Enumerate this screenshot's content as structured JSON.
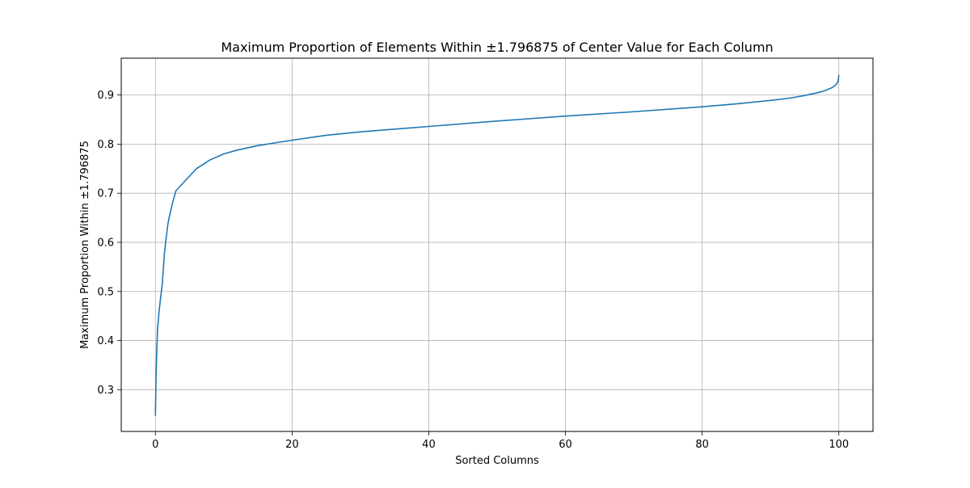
{
  "chart_data": {
    "type": "line",
    "title": "Maximum Proportion of Elements Within ±1.796875 of Center Value for Each Column",
    "xlabel": "Sorted Columns",
    "ylabel": "Maximum Proportion Within ±1.796875",
    "xlim": [
      -5,
      105
    ],
    "ylim": [
      0.215,
      0.975
    ],
    "xticks": [
      0,
      20,
      40,
      60,
      80,
      100
    ],
    "xtick_labels": [
      "0",
      "20",
      "40",
      "60",
      "80",
      "100"
    ],
    "yticks": [
      0.3,
      0.4,
      0.5,
      0.6,
      0.7,
      0.8,
      0.9
    ],
    "ytick_labels": [
      "0.3",
      "0.4",
      "0.5",
      "0.6",
      "0.7",
      "0.8",
      "0.9"
    ],
    "grid": true,
    "series": [
      {
        "color": "#1f77b4",
        "x": [
          0,
          0.1,
          0.2,
          0.3,
          0.5,
          0.7,
          1.0,
          1.3,
          1.5,
          1.8,
          2.0,
          2.5,
          3.0,
          4.0,
          5.0,
          6.0,
          8.0,
          10.0,
          12.0,
          15.0,
          20.0,
          25.0,
          30.0,
          40.0,
          50.0,
          60.0,
          70.0,
          80.0,
          85.0,
          90.0,
          93.0,
          95.0,
          97.0,
          98.0,
          99.0,
          99.5,
          99.7,
          99.9,
          100.0
        ],
        "y": [
          0.248,
          0.33,
          0.38,
          0.42,
          0.455,
          0.48,
          0.515,
          0.575,
          0.6,
          0.635,
          0.65,
          0.68,
          0.705,
          0.72,
          0.735,
          0.75,
          0.768,
          0.78,
          0.788,
          0.797,
          0.808,
          0.818,
          0.825,
          0.836,
          0.847,
          0.857,
          0.866,
          0.876,
          0.882,
          0.889,
          0.894,
          0.899,
          0.905,
          0.909,
          0.915,
          0.92,
          0.923,
          0.928,
          0.94
        ]
      }
    ]
  }
}
